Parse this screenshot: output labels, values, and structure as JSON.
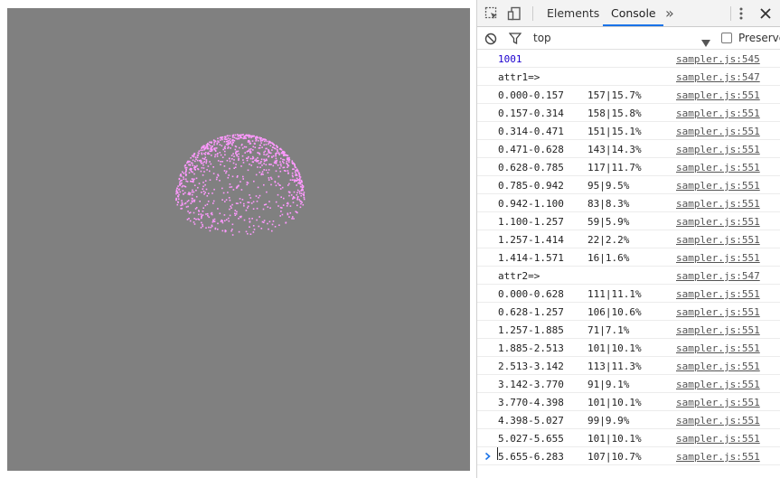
{
  "devtools": {
    "tabs": [
      {
        "label": "Elements"
      },
      {
        "label": "Console"
      }
    ],
    "more_tabs_glyph": "»",
    "filter": {
      "context": "top",
      "preserve_log_label": "Preserve log"
    },
    "console": {
      "lines": [
        {
          "msg": "1001",
          "val": "",
          "src": "sampler.js:545"
        },
        {
          "msg": "attr1=>",
          "val": "",
          "src": "sampler.js:547"
        },
        {
          "msg": "0.000-0.157",
          "val": "157|15.7%",
          "src": "sampler.js:551"
        },
        {
          "msg": "0.157-0.314",
          "val": "158|15.8%",
          "src": "sampler.js:551"
        },
        {
          "msg": "0.314-0.471",
          "val": "151|15.1%",
          "src": "sampler.js:551"
        },
        {
          "msg": "0.471-0.628",
          "val": "143|14.3%",
          "src": "sampler.js:551"
        },
        {
          "msg": "0.628-0.785",
          "val": "117|11.7%",
          "src": "sampler.js:551"
        },
        {
          "msg": "0.785-0.942",
          "val": "95|9.5%",
          "src": "sampler.js:551"
        },
        {
          "msg": "0.942-1.100",
          "val": "83|8.3%",
          "src": "sampler.js:551"
        },
        {
          "msg": "1.100-1.257",
          "val": "59|5.9%",
          "src": "sampler.js:551"
        },
        {
          "msg": "1.257-1.414",
          "val": "22|2.2%",
          "src": "sampler.js:551"
        },
        {
          "msg": "1.414-1.571",
          "val": "16|1.6%",
          "src": "sampler.js:551"
        },
        {
          "msg": "attr2=>",
          "val": "",
          "src": "sampler.js:547"
        },
        {
          "msg": "0.000-0.628",
          "val": "111|11.1%",
          "src": "sampler.js:551"
        },
        {
          "msg": "0.628-1.257",
          "val": "106|10.6%",
          "src": "sampler.js:551"
        },
        {
          "msg": "1.257-1.885",
          "val": "71|7.1%",
          "src": "sampler.js:551"
        },
        {
          "msg": "1.885-2.513",
          "val": "101|10.1%",
          "src": "sampler.js:551"
        },
        {
          "msg": "2.513-3.142",
          "val": "113|11.3%",
          "src": "sampler.js:551"
        },
        {
          "msg": "3.142-3.770",
          "val": "91|9.1%",
          "src": "sampler.js:551"
        },
        {
          "msg": "3.770-4.398",
          "val": "101|10.1%",
          "src": "sampler.js:551"
        },
        {
          "msg": "4.398-5.027",
          "val": "99|9.9%",
          "src": "sampler.js:551"
        },
        {
          "msg": "5.027-5.655",
          "val": "101|10.1%",
          "src": "sampler.js:551"
        },
        {
          "msg": "5.655-6.283",
          "val": "107|10.7%",
          "src": "sampler.js:551"
        }
      ]
    }
  },
  "colors": {
    "canvas_bg": "#808080",
    "points": "#ff99ff",
    "accent": "#1a73e8",
    "number": "#1c00cf"
  }
}
